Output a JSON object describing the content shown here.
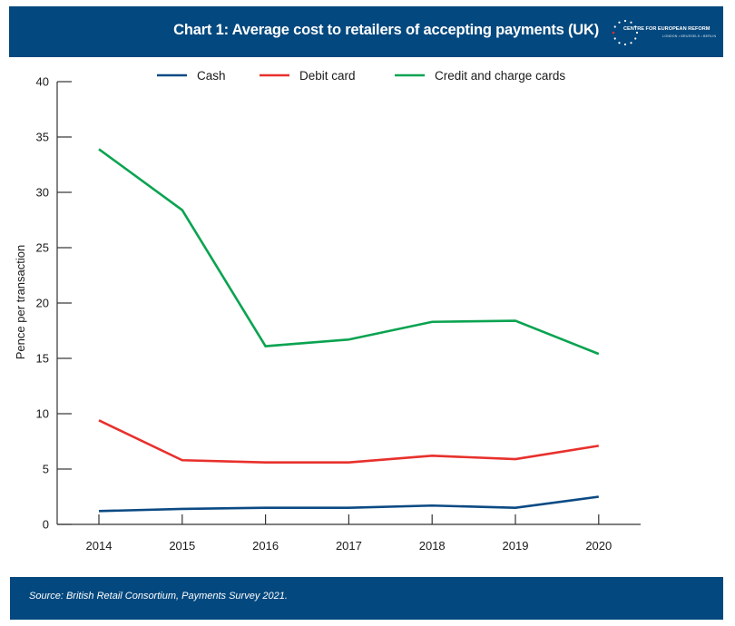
{
  "header": {
    "title": "Chart 1: Average cost to retailers of accepting payments (UK)",
    "logo": {
      "name": "CENTRE FOR EUROPEAN REFORM",
      "cities": "LONDON • BRUSSELS • BERLIN",
      "icon": "eu-stars-icon"
    },
    "background": "#03487e"
  },
  "footer": {
    "source": "Source: British Retail Consortium, Payments Survey 2021."
  },
  "chart_data": {
    "type": "line",
    "title": "Chart 1: Average cost to retailers of accepting payments (UK)",
    "xlabel": "",
    "ylabel": "Pence per transaction",
    "x": [
      "2014",
      "2015",
      "2016",
      "2017",
      "2018",
      "2019",
      "2020"
    ],
    "ylim": [
      0,
      40
    ],
    "yticks": [
      0,
      5,
      10,
      15,
      20,
      25,
      30,
      35,
      40
    ],
    "grid": false,
    "legend_position": "top-center",
    "series": [
      {
        "name": "Cash",
        "color": "#0b4a84",
        "values": [
          1.2,
          1.4,
          1.5,
          1.5,
          1.7,
          1.5,
          2.5
        ]
      },
      {
        "name": "Debit card",
        "color": "#e8302c",
        "values": [
          9.4,
          5.8,
          5.6,
          5.6,
          6.2,
          5.9,
          7.1
        ]
      },
      {
        "name": "Credit and charge cards",
        "color": "#0aa350",
        "values": [
          33.9,
          28.4,
          16.1,
          16.7,
          18.3,
          18.4,
          15.4
        ]
      }
    ],
    "source": "Source: British Retail Consortium, Payments Survey 2021."
  }
}
